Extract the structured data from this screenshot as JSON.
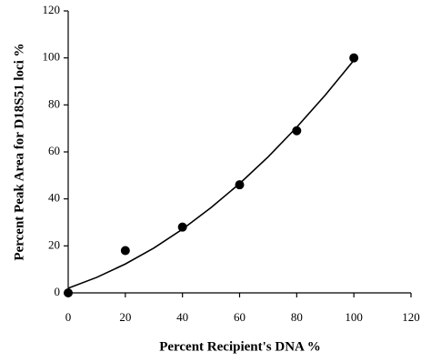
{
  "chart_data": {
    "type": "scatter",
    "x_label": "Percent Recipient's DNA %",
    "y_label": "Percent Peak Area for D18S51 loci %",
    "x": [
      0,
      20,
      40,
      60,
      80,
      100
    ],
    "values": [
      0,
      18,
      28,
      46,
      69,
      100
    ],
    "color": "#000000",
    "trendline": {
      "x": [
        0,
        10,
        20,
        30,
        40,
        50,
        60,
        70,
        80,
        90,
        100
      ],
      "values": [
        2,
        6.6,
        12.3,
        19.1,
        27.1,
        36.3,
        46.5,
        57.9,
        70.5,
        84.2,
        99
      ]
    },
    "xlim": [
      0,
      120
    ],
    "xticks": [
      0,
      20,
      40,
      60,
      80,
      100,
      120
    ],
    "ylim": [
      0,
      120
    ],
    "yticks": [
      0,
      20,
      40,
      60,
      80,
      100,
      120
    ]
  }
}
